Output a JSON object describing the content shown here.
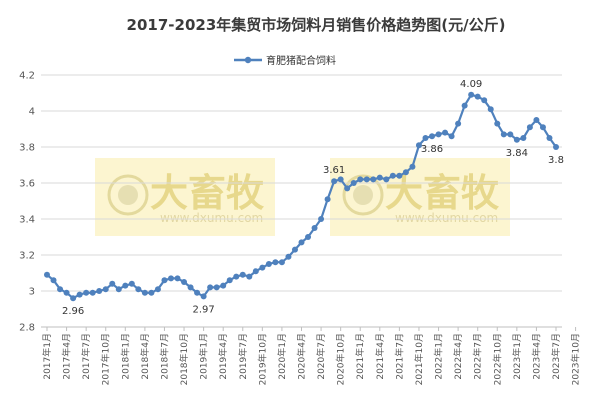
{
  "chart_data": {
    "type": "line",
    "title": "2017-2023年集贸市场饲料月销售价格趋势图(元/公斤)",
    "xlabel": "",
    "ylabel": "",
    "ylim": [
      2.8,
      4.2
    ],
    "yticks": [
      "2.8",
      "3",
      "3.2",
      "3.4",
      "3.6",
      "3.8",
      "4",
      "4.2"
    ],
    "legend_position": "top-center",
    "grid": "horizontal",
    "line_color": "#4f81bd",
    "x_tick_labels": [
      "2017年1月",
      "2017年4月",
      "2017年7月",
      "2017年10月",
      "2018年1月",
      "2018年4月",
      "2018年7月",
      "2018年10月",
      "2019年1月",
      "2019年4月",
      "2019年7月",
      "2019年10月",
      "2020年1月",
      "2020年4月",
      "2020年7月",
      "2020年10月",
      "2021年1月",
      "2021年4月",
      "2021年7月",
      "2021年10月",
      "2022年1月",
      "2022年4月",
      "2022年7月",
      "2022年10月",
      "2023年1月",
      "2023年4月",
      "2023年7月",
      "2023年10月"
    ],
    "series": [
      {
        "name": "育肥猪配合饲料",
        "values": [
          3.09,
          3.06,
          3.01,
          2.99,
          2.96,
          2.98,
          2.99,
          2.99,
          3.0,
          3.01,
          3.04,
          3.01,
          3.03,
          3.04,
          3.01,
          2.99,
          2.99,
          3.01,
          3.06,
          3.07,
          3.07,
          3.05,
          3.02,
          2.99,
          2.97,
          3.02,
          3.02,
          3.03,
          3.06,
          3.08,
          3.09,
          3.08,
          3.11,
          3.13,
          3.15,
          3.16,
          3.16,
          3.19,
          3.23,
          3.27,
          3.3,
          3.35,
          3.4,
          3.51,
          3.61,
          3.62,
          3.57,
          3.6,
          3.62,
          3.62,
          3.62,
          3.63,
          3.62,
          3.64,
          3.64,
          3.66,
          3.69,
          3.81,
          3.85,
          3.86,
          3.87,
          3.88,
          3.86,
          3.93,
          4.03,
          4.09,
          4.08,
          4.06,
          4.01,
          3.93,
          3.87,
          3.87,
          3.84,
          3.85,
          3.91,
          3.95,
          3.91,
          3.85,
          3.8
        ]
      }
    ],
    "data_labels": [
      {
        "index": 4,
        "text": "2.96",
        "position": "below"
      },
      {
        "index": 24,
        "text": "2.97",
        "position": "below"
      },
      {
        "index": 44,
        "text": "3.61",
        "position": "above"
      },
      {
        "index": 59,
        "text": "3.86",
        "position": "below"
      },
      {
        "index": 65,
        "text": "4.09",
        "position": "above"
      },
      {
        "index": 72,
        "text": "3.84",
        "position": "below"
      },
      {
        "index": 78,
        "text": "3.8",
        "position": "below"
      }
    ]
  },
  "watermark": {
    "brand": "大畜牧",
    "url": "www.dxumu.com"
  }
}
